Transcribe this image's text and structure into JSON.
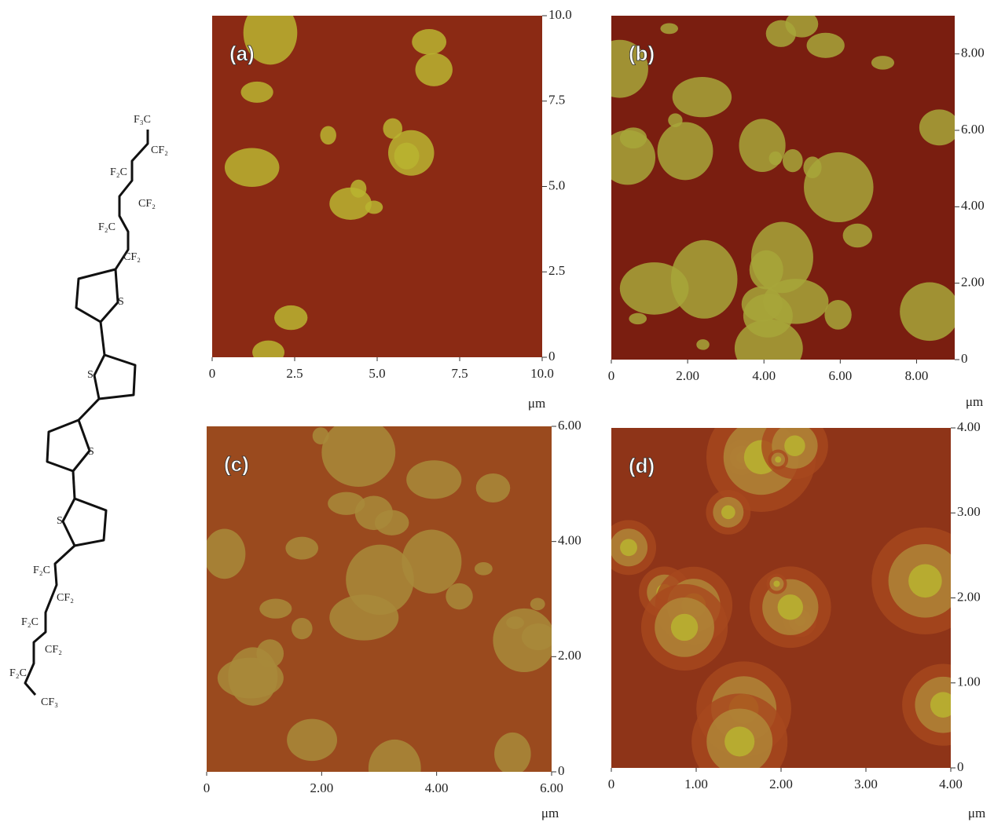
{
  "structure": {
    "labels": [
      "F₃C",
      "CF₂",
      "F₂C",
      "CF₂",
      "F₂C",
      "CF₂",
      "S",
      "S",
      "S",
      "S",
      "F₂C",
      "CF₂",
      "F₂C",
      "CF₂",
      "F₂C",
      "CF₃"
    ]
  },
  "panels": [
    {
      "label": "(a)",
      "unit": "μm",
      "xlim": [
        0,
        10
      ],
      "ylim": [
        0,
        10
      ],
      "xticks": [
        0,
        2.5,
        {
          "value": 5,
          "label": "5.0"
        },
        7.5,
        {
          "value": 10,
          "label": "10.0"
        }
      ],
      "yticks": [
        {
          "value": 10,
          "label": "10.0"
        },
        7.5,
        {
          "value": 5,
          "label": "5.0"
        },
        2.5,
        0
      ]
    },
    {
      "label": "(b)",
      "unit": "μm",
      "xlim": [
        0,
        9
      ],
      "ylim": [
        0,
        9
      ],
      "xticks": [
        0,
        {
          "value": 2,
          "label": "2.00"
        },
        {
          "value": 4,
          "label": "4.00"
        },
        {
          "value": 6,
          "label": "6.00"
        },
        {
          "value": 8,
          "label": "8.00"
        }
      ],
      "yticks": [
        {
          "value": 8,
          "label": "8.00"
        },
        {
          "value": 6,
          "label": "6.00"
        },
        {
          "value": 4,
          "label": "4.00"
        },
        {
          "value": 2,
          "label": "2.00"
        },
        0
      ]
    },
    {
      "label": "(c)",
      "unit": "μm",
      "xlim": [
        0,
        6
      ],
      "ylim": [
        0,
        6
      ],
      "xticks": [
        0,
        {
          "value": 2,
          "label": "2.00"
        },
        {
          "value": 4,
          "label": "4.00"
        },
        {
          "value": 6,
          "label": "6.00"
        }
      ],
      "yticks": [
        {
          "value": 6,
          "label": "6.00"
        },
        {
          "value": 4,
          "label": "4.00"
        },
        {
          "value": 2,
          "label": "2.00"
        },
        0
      ]
    },
    {
      "label": "(d)",
      "unit": "μm",
      "xlim": [
        0,
        4
      ],
      "ylim": [
        0,
        4
      ],
      "xticks": [
        0,
        {
          "value": 1,
          "label": "1.00"
        },
        {
          "value": 2,
          "label": "2.00"
        },
        {
          "value": 3,
          "label": "3.00"
        },
        {
          "value": 4,
          "label": "4.00"
        }
      ],
      "yticks": [
        {
          "value": 4,
          "label": "4.00"
        },
        {
          "value": 3,
          "label": "3.00"
        },
        {
          "value": 2,
          "label": "2.00"
        },
        {
          "value": 1,
          "label": "1.00"
        },
        0
      ]
    }
  ]
}
